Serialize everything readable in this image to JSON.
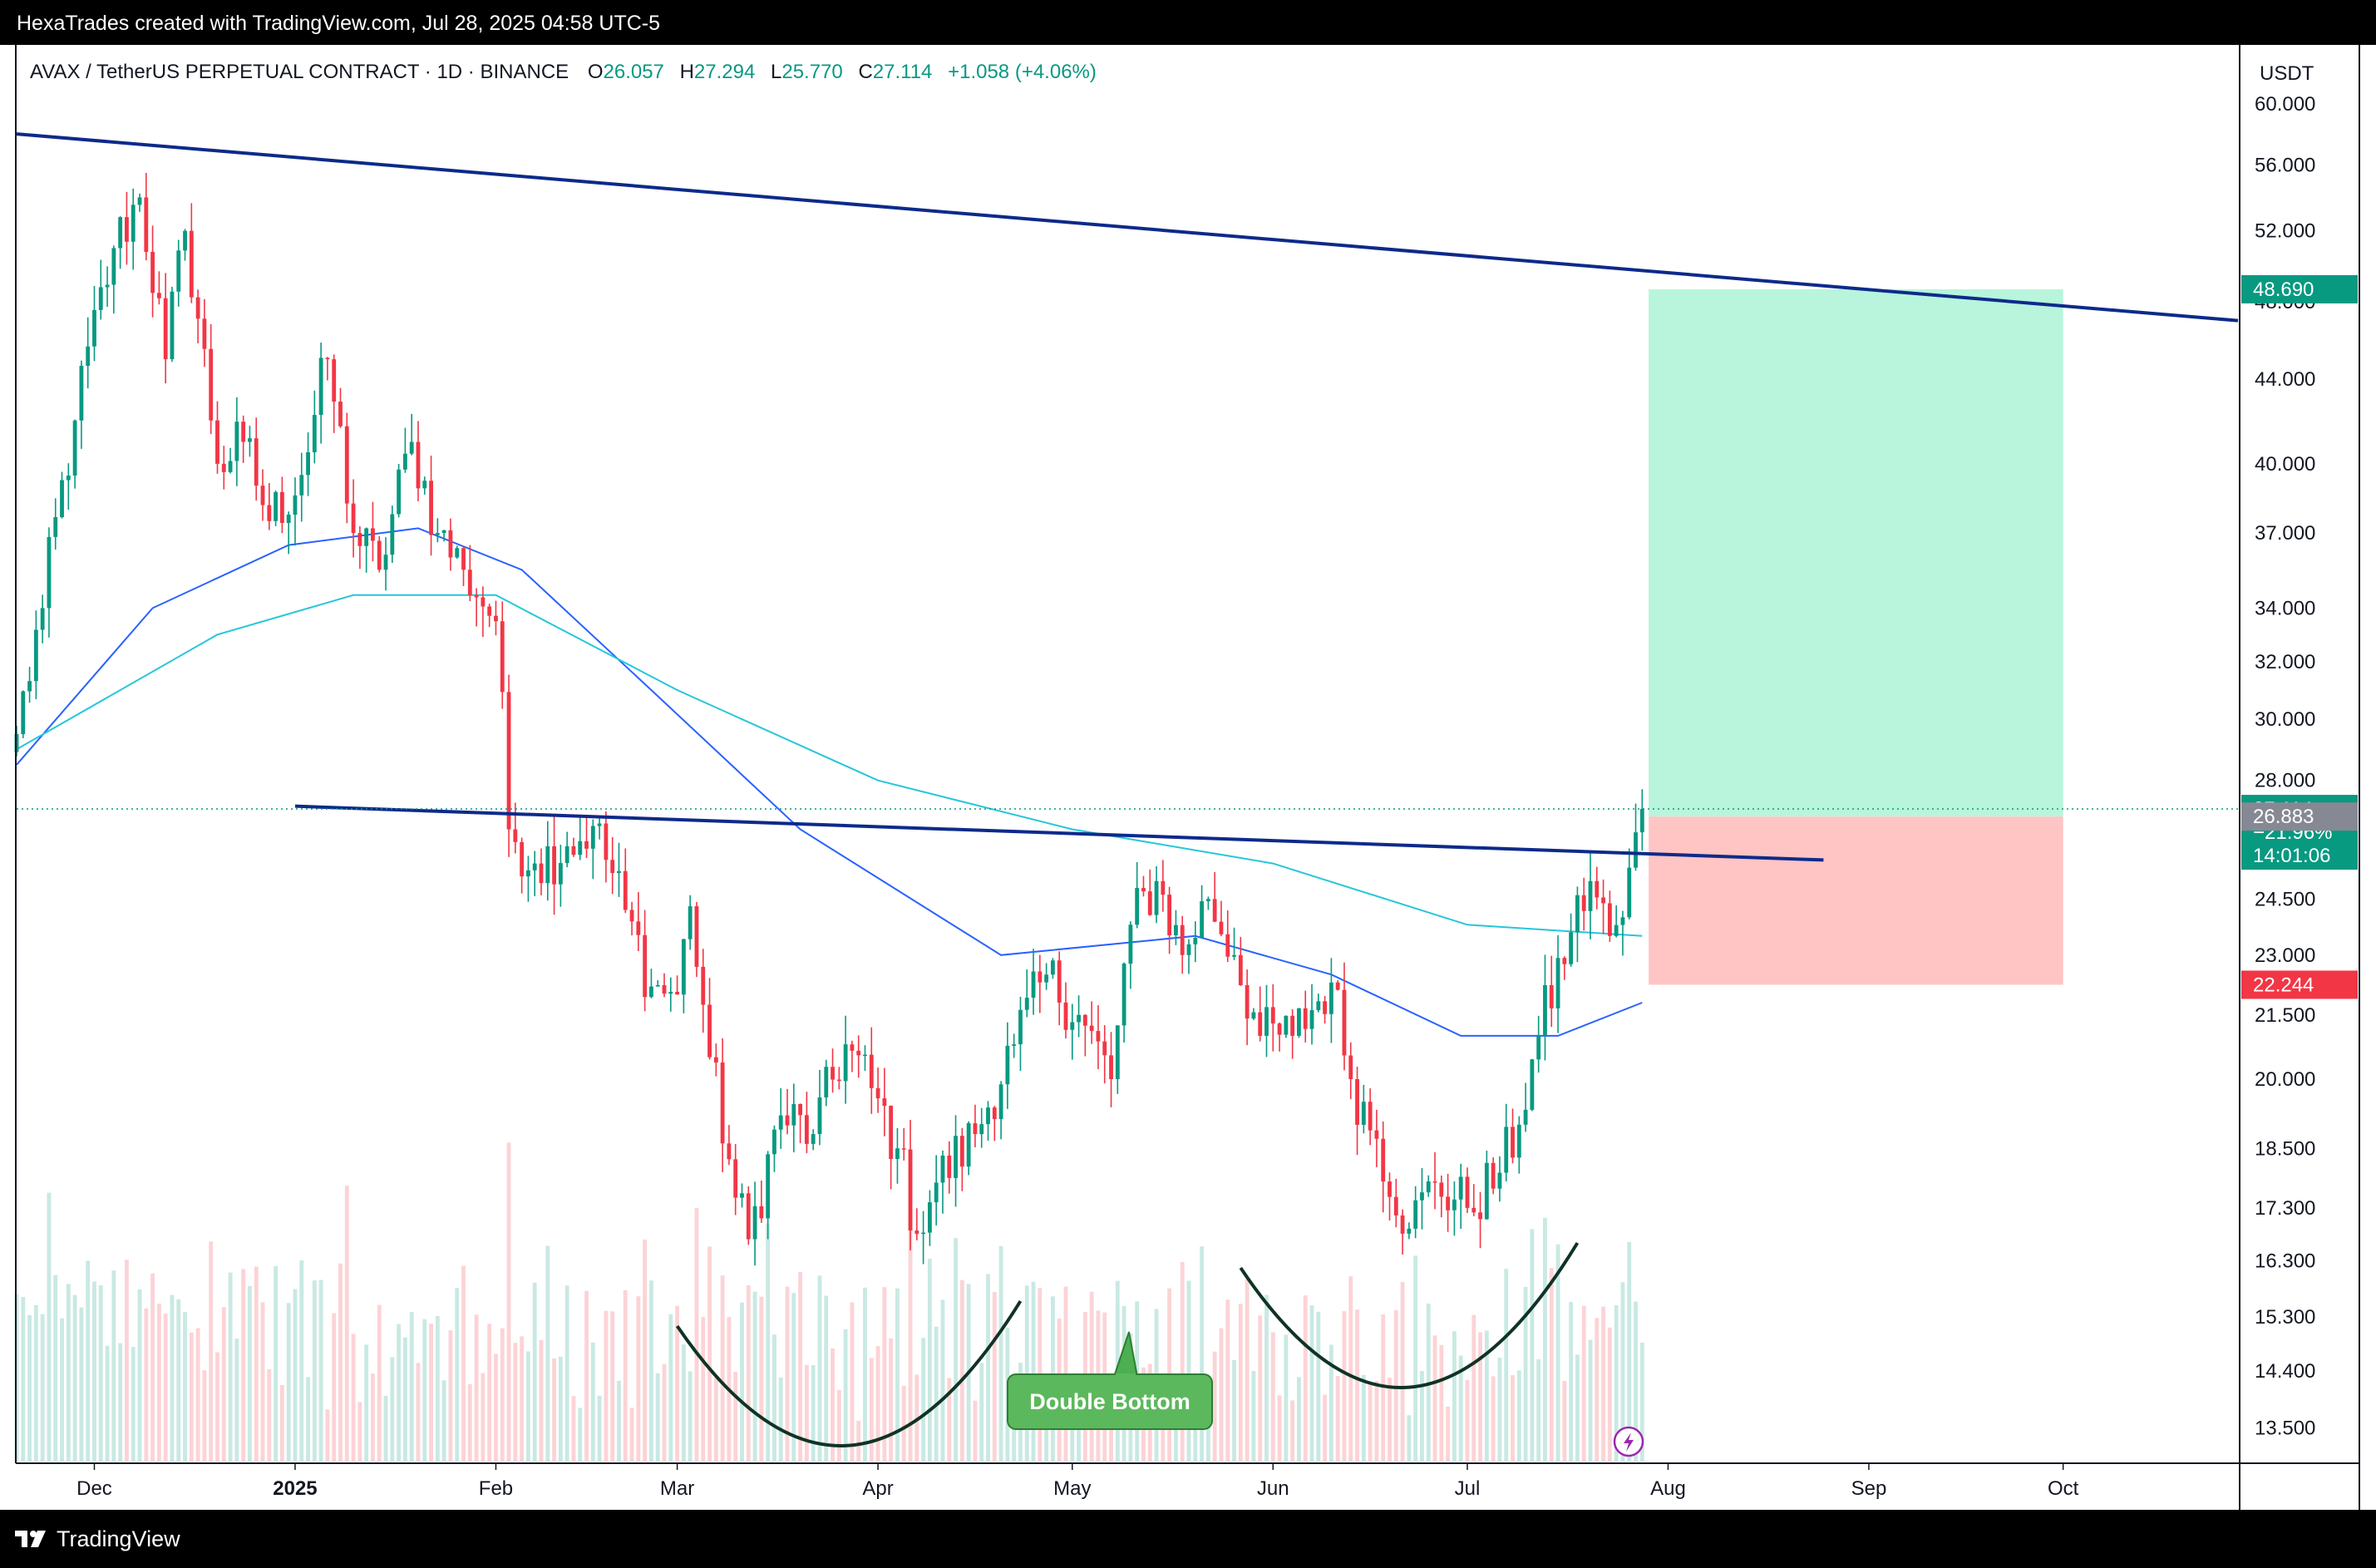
{
  "header": {
    "caption": "HexaTrades created with TradingView.com, Jul 28, 2025 04:58 UTC-5"
  },
  "footer": {
    "brand": "TradingView"
  },
  "legend": {
    "symbol": "AVAX / TetherUS PERPETUAL CONTRACT · 1D · BINANCE",
    "o_label": "O",
    "o_value": "26.057",
    "h_label": "H",
    "h_value": "27.294",
    "l_label": "L",
    "l_value": "25.770",
    "c_label": "C",
    "c_value": "27.114",
    "change": "+1.058 (+4.06%)"
  },
  "price_axis": {
    "currency": "USDT"
  },
  "annotation": {
    "label": "Double Bottom"
  },
  "colors": {
    "up": "#089981",
    "down": "#f23645",
    "trendline": "#0d2a8a",
    "ma_fast": "#2962ff",
    "ma_slow": "#26c6da",
    "target_zone": "#b8f5dc",
    "stop_zone": "#ffc4c4"
  },
  "chart_data": {
    "type": "candlestick",
    "title": "AVAX / TetherUS PERPETUAL CONTRACT · 1D · BINANCE",
    "y_scale": "log",
    "ylim": [
      13.0,
      64.0
    ],
    "x_range": [
      "2024-11-19",
      "2025-10-28"
    ],
    "x_ticks": [
      {
        "date": "2024-12-01",
        "label": "Dec",
        "bold": false
      },
      {
        "date": "2025-01-01",
        "label": "2025",
        "bold": true
      },
      {
        "date": "2025-02-01",
        "label": "Feb",
        "bold": false
      },
      {
        "date": "2025-03-01",
        "label": "Mar",
        "bold": false
      },
      {
        "date": "2025-04-01",
        "label": "Apr",
        "bold": false
      },
      {
        "date": "2025-05-01",
        "label": "May",
        "bold": false
      },
      {
        "date": "2025-06-01",
        "label": "Jun",
        "bold": false
      },
      {
        "date": "2025-07-01",
        "label": "Jul",
        "bold": false
      },
      {
        "date": "2025-08-01",
        "label": "Aug",
        "bold": false
      },
      {
        "date": "2025-09-01",
        "label": "Sep",
        "bold": false
      },
      {
        "date": "2025-10-01",
        "label": "Oct",
        "bold": false
      }
    ],
    "y_ticks": [
      "60.000",
      "56.000",
      "52.000",
      "48.000",
      "44.000",
      "40.000",
      "37.000",
      "34.000",
      "32.000",
      "30.000",
      "28.000",
      "24.500",
      "23.000",
      "21.500",
      "20.000",
      "18.500",
      "17.300",
      "16.300",
      "15.300",
      "14.400",
      "13.500"
    ],
    "price_tags": [
      {
        "value": 48.69,
        "label": "48.690",
        "color": "#089981"
      },
      {
        "value": 27.114,
        "label": "27.114",
        "color": "#089981",
        "extra": [
          "−21.96%",
          "14:01:06"
        ]
      },
      {
        "value": 26.883,
        "label": "26.883",
        "color": "#868993"
      },
      {
        "value": 22.244,
        "label": "22.244",
        "color": "#f23645"
      }
    ],
    "last_price": 27.114,
    "candles_close_keypoints": [
      [
        "2024-11-19",
        29.5
      ],
      [
        "2024-11-23",
        34.0
      ],
      [
        "2024-11-28",
        42.0
      ],
      [
        "2024-12-04",
        51.0
      ],
      [
        "2024-12-08",
        54.0
      ],
      [
        "2024-12-12",
        45.0
      ],
      [
        "2024-12-15",
        52.0
      ],
      [
        "2024-12-20",
        40.0
      ],
      [
        "2024-12-24",
        41.0
      ],
      [
        "2024-12-28",
        37.5
      ],
      [
        "2025-01-02",
        39.5
      ],
      [
        "2025-01-06",
        45.0
      ],
      [
        "2025-01-10",
        37.0
      ],
      [
        "2025-01-14",
        35.5
      ],
      [
        "2025-01-19",
        41.0
      ],
      [
        "2025-01-23",
        37.0
      ],
      [
        "2025-01-27",
        35.5
      ],
      [
        "2025-02-01",
        33.5
      ],
      [
        "2025-02-03",
        26.5
      ],
      [
        "2025-02-07",
        25.5
      ],
      [
        "2025-02-12",
        26.0
      ],
      [
        "2025-02-16",
        26.6
      ],
      [
        "2025-02-21",
        24.2
      ],
      [
        "2025-02-25",
        22.2
      ],
      [
        "2025-03-01",
        22.0
      ],
      [
        "2025-03-03",
        24.3
      ],
      [
        "2025-03-06",
        20.5
      ],
      [
        "2025-03-10",
        17.5
      ],
      [
        "2025-03-12",
        16.7
      ],
      [
        "2025-03-17",
        19.2
      ],
      [
        "2025-03-22",
        18.8
      ],
      [
        "2025-03-27",
        20.8
      ],
      [
        "2025-03-31",
        19.8
      ],
      [
        "2025-04-04",
        18.5
      ],
      [
        "2025-04-07",
        16.8
      ],
      [
        "2025-04-10",
        17.8
      ],
      [
        "2025-04-16",
        18.8
      ],
      [
        "2025-04-22",
        20.8
      ],
      [
        "2025-04-27",
        22.5
      ],
      [
        "2025-05-02",
        21.5
      ],
      [
        "2025-05-07",
        20.0
      ],
      [
        "2025-05-10",
        23.8
      ],
      [
        "2025-05-14",
        25.0
      ],
      [
        "2025-05-18",
        23.0
      ],
      [
        "2025-05-22",
        24.5
      ],
      [
        "2025-05-26",
        23.0
      ],
      [
        "2025-05-30",
        21.0
      ],
      [
        "2025-06-04",
        21.0
      ],
      [
        "2025-06-10",
        22.3
      ],
      [
        "2025-06-13",
        20.0
      ],
      [
        "2025-06-17",
        18.7
      ],
      [
        "2025-06-22",
        16.9
      ],
      [
        "2025-06-26",
        17.8
      ],
      [
        "2025-07-01",
        17.3
      ],
      [
        "2025-07-06",
        18.0
      ],
      [
        "2025-07-09",
        19.0
      ],
      [
        "2025-07-12",
        21.0
      ],
      [
        "2025-07-17",
        23.6
      ],
      [
        "2025-07-20",
        25.0
      ],
      [
        "2025-07-23",
        23.5
      ],
      [
        "2025-07-25",
        24.0
      ],
      [
        "2025-07-28",
        27.114
      ]
    ],
    "moving_averages": [
      {
        "color": "#2962ff",
        "points": [
          [
            "2024-11-19",
            28.5
          ],
          [
            "2024-12-10",
            34.0
          ],
          [
            "2024-12-31",
            36.5
          ],
          [
            "2025-01-20",
            37.2
          ],
          [
            "2025-02-05",
            35.5
          ],
          [
            "2025-02-25",
            31.0
          ],
          [
            "2025-03-20",
            26.5
          ],
          [
            "2025-04-20",
            23.0
          ],
          [
            "2025-05-20",
            23.5
          ],
          [
            "2025-06-10",
            22.5
          ],
          [
            "2025-06-30",
            21.0
          ],
          [
            "2025-07-15",
            21.0
          ],
          [
            "2025-07-28",
            21.8
          ]
        ]
      },
      {
        "color": "#26c6da",
        "points": [
          [
            "2024-11-19",
            29.0
          ],
          [
            "2024-12-20",
            33.0
          ],
          [
            "2025-01-10",
            34.5
          ],
          [
            "2025-02-01",
            34.5
          ],
          [
            "2025-03-01",
            31.0
          ],
          [
            "2025-04-01",
            28.0
          ],
          [
            "2025-05-01",
            26.5
          ],
          [
            "2025-06-01",
            25.5
          ],
          [
            "2025-07-01",
            23.8
          ],
          [
            "2025-07-28",
            23.5
          ]
        ]
      }
    ],
    "trendlines": [
      {
        "from": [
          "2024-11-19",
          58.0
        ],
        "to": [
          "2025-10-28",
          47.0
        ]
      },
      {
        "from": [
          "2025-01-01",
          27.2
        ],
        "to": [
          "2025-08-25",
          25.6
        ]
      }
    ],
    "position": {
      "entry": 26.883,
      "target": 48.69,
      "stop": 22.244,
      "start": "2025-07-29",
      "end": "2025-10-01"
    },
    "patterns": [
      {
        "label": "Double Bottom",
        "arcs": [
          {
            "from": "2025-03-01",
            "to": "2025-04-23"
          },
          {
            "from": "2025-05-27",
            "to": "2025-07-18"
          }
        ]
      }
    ]
  }
}
